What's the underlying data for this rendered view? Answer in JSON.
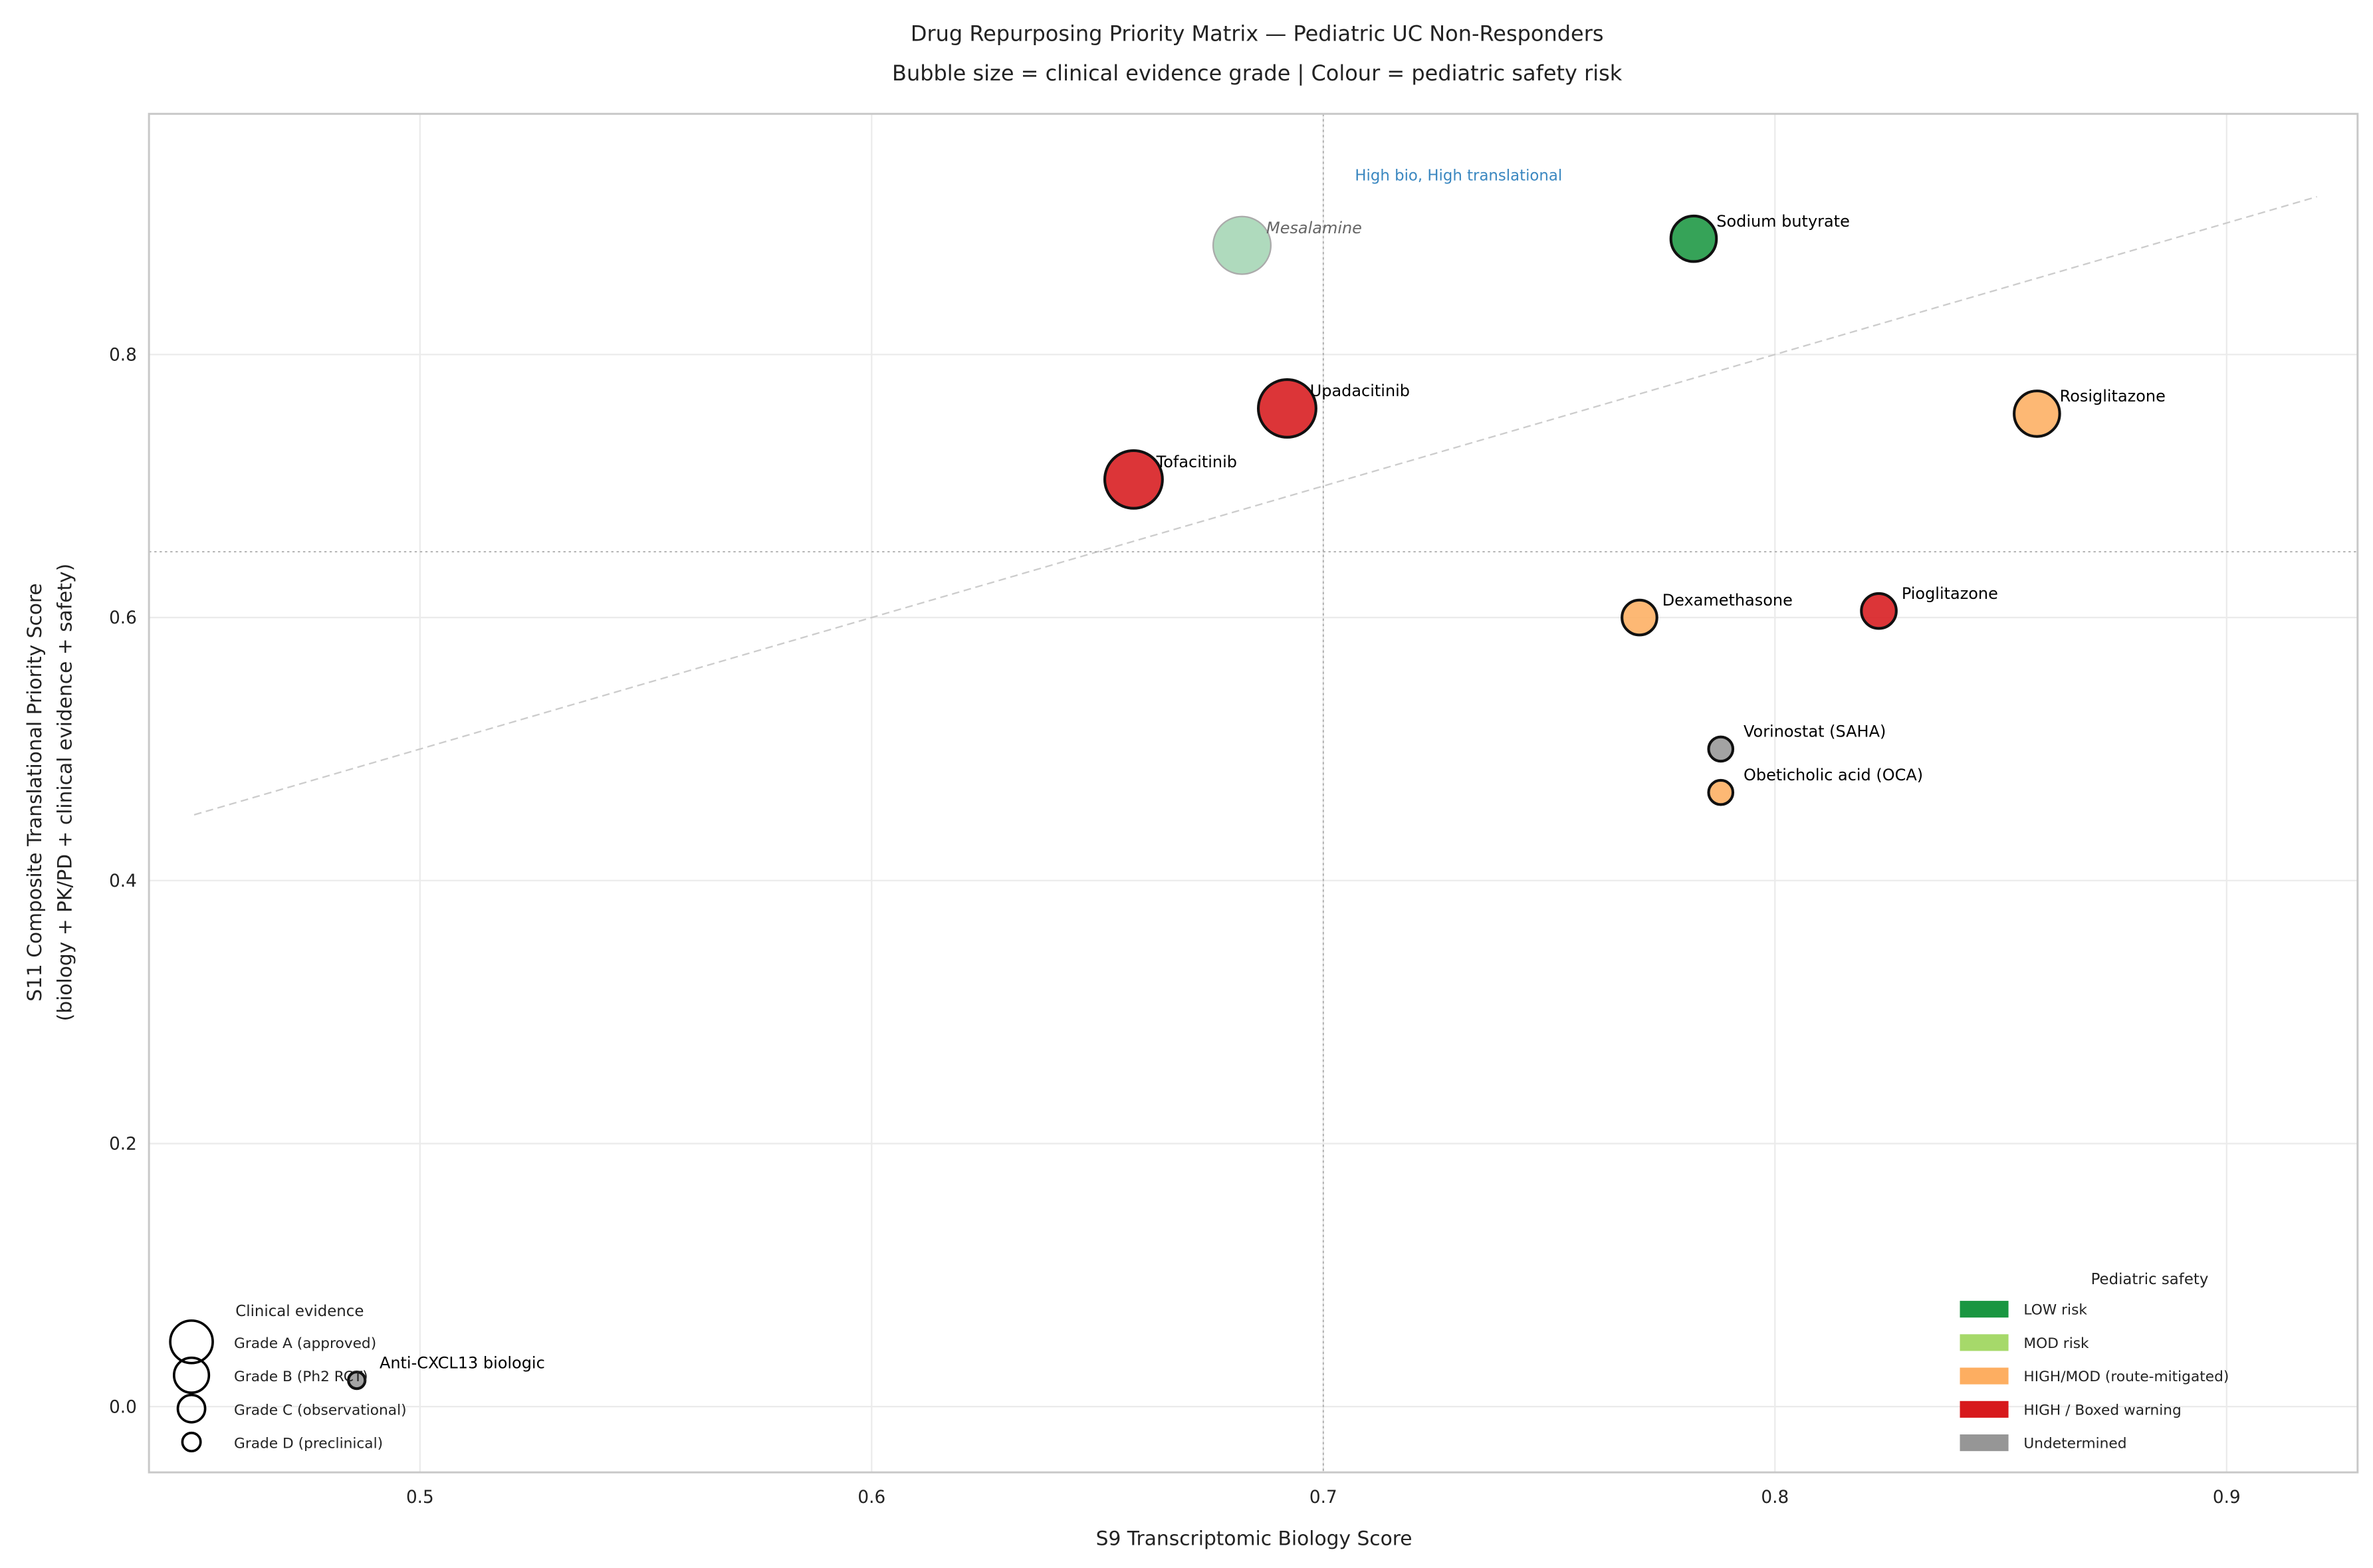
{
  "chart_data": {
    "type": "scatter",
    "title": "Drug Repurposing Priority Matrix — Pediatric UC Non-Responders",
    "subtitle": "Bubble size = clinical evidence grade  |  Colour = pediatric safety risk",
    "xlabel": "S9 Transcriptomic Biology Score",
    "ylabel": [
      "S11 Composite Translational Priority Score",
      "(biology + PK/PD + clinical evidence + safety)"
    ],
    "xlim": [
      0.44,
      0.929
    ],
    "ylim": [
      -0.05,
      0.983
    ],
    "xticks": [
      "0.5",
      "0.6",
      "0.7",
      "0.8",
      "0.9"
    ],
    "xtick_values": [
      0.5,
      0.6,
      0.7,
      0.8,
      0.9
    ],
    "yticks": [
      "0.0",
      "0.2",
      "0.4",
      "0.6",
      "0.8"
    ],
    "ytick_values": [
      0.0,
      0.2,
      0.4,
      0.6,
      0.8
    ],
    "grid": true,
    "thresholds": {
      "x": 0.7,
      "y": 0.65
    },
    "diagonal": {
      "from": [
        0.45,
        0.45
      ],
      "to": [
        0.92,
        0.92
      ]
    },
    "annotation": {
      "text": "High bio, High translational",
      "x": 0.707,
      "y": 0.937,
      "color": "#3a87c0"
    },
    "points": [
      {
        "name": "Mesalamine",
        "x": 0.682,
        "y": 0.883,
        "grade": "A",
        "safety": "LOW",
        "faded": true
      },
      {
        "name": "Sodium butyrate",
        "x": 0.782,
        "y": 0.888,
        "grade": "B",
        "safety": "LOW"
      },
      {
        "name": "Upadacitinib",
        "x": 0.692,
        "y": 0.759,
        "grade": "A",
        "safety": "HIGH"
      },
      {
        "name": "Tofacitinib",
        "x": 0.658,
        "y": 0.705,
        "grade": "A",
        "safety": "HIGH"
      },
      {
        "name": "Rosiglitazone",
        "x": 0.858,
        "y": 0.755,
        "grade": "B",
        "safety": "HIGHMOD"
      },
      {
        "name": "Dexamethasone",
        "x": 0.77,
        "y": 0.6,
        "grade": "C",
        "safety": "HIGHMOD"
      },
      {
        "name": "Pioglitazone",
        "x": 0.823,
        "y": 0.605,
        "grade": "C",
        "safety": "HIGH"
      },
      {
        "name": "Vorinostat (SAHA)",
        "x": 0.788,
        "y": 0.5,
        "grade": "D",
        "safety": "UND"
      },
      {
        "name": "Obeticholic acid (OCA)",
        "x": 0.788,
        "y": 0.467,
        "grade": "D",
        "safety": "HIGHMOD"
      },
      {
        "name": "Anti-CXCL13 biologic",
        "x": 0.486,
        "y": 0.02,
        "grade": "D",
        "safety": "UND"
      }
    ],
    "size_legend": {
      "title": "Clinical evidence",
      "location": "lower-left",
      "items": [
        {
          "grade": "A",
          "label": "Grade A (approved)"
        },
        {
          "grade": "B",
          "label": "Grade B (Ph2 RCT)"
        },
        {
          "grade": "C",
          "label": "Grade C (observational)"
        },
        {
          "grade": "D",
          "label": "Grade D (preclinical)"
        }
      ]
    },
    "color_legend": {
      "title": "Pediatric safety",
      "location": "lower-right",
      "items": [
        {
          "key": "LOW",
          "label": "LOW risk",
          "color": "#1a9641"
        },
        {
          "key": "MOD",
          "label": "MOD risk",
          "color": "#a6d96a"
        },
        {
          "key": "HIGHMOD",
          "label": "HIGH/MOD (route-mitigated)",
          "color": "#fdae61"
        },
        {
          "key": "HIGH",
          "label": "HIGH / Boxed warning",
          "color": "#d7191c"
        },
        {
          "key": "UND",
          "label": "Undetermined",
          "color": "#969696"
        }
      ]
    }
  }
}
